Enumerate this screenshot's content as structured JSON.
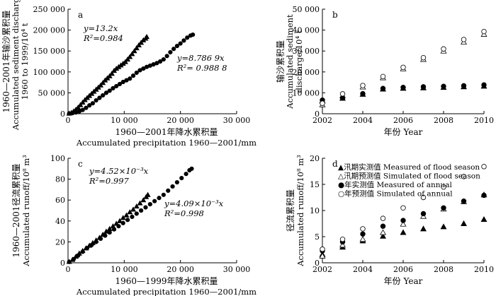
{
  "chart_data": [
    {
      "id": "a",
      "type": "scatter",
      "panel_label": "a",
      "xlabel_cn": "1960—2001年降水累积量",
      "xlabel_en": "Accumulated precipitation 1960—2001/mm",
      "ylabel_cn": "1960—2001年输沙累积量",
      "ylabel_en": "Accumulated sediment discharge",
      "ylabel_en2": "1960 to 1999/10⁴ t",
      "xlim": [
        0,
        30000
      ],
      "ylim": [
        0,
        250000
      ],
      "xticks": [
        0,
        10000,
        20000,
        30000
      ],
      "xtick_labels": [
        "0",
        "10 000",
        "20 000",
        "30 000"
      ],
      "yticks": [
        0,
        50000,
        100000,
        150000,
        200000,
        250000
      ],
      "ytick_labels": [
        "0",
        "50 000",
        "100 000",
        "150 000",
        "200 000",
        "250 000"
      ],
      "annotations": [
        {
          "eq": "y=13.2x",
          "r2": "R²=0.984"
        },
        {
          "eq": "y=8.786 9x",
          "r2": "R²= 0.988 8"
        }
      ],
      "series": [
        {
          "name": "triangle series",
          "marker": "triangle",
          "points": [
            [
              200,
              800
            ],
            [
              600,
              2500
            ],
            [
              1000,
              6000
            ],
            [
              1400,
              10000
            ],
            [
              1800,
              15000
            ],
            [
              2200,
              21000
            ],
            [
              2600,
              27000
            ],
            [
              3000,
              33000
            ],
            [
              3400,
              38000
            ],
            [
              3800,
              43000
            ],
            [
              4200,
              48000
            ],
            [
              4600,
              53000
            ],
            [
              5000,
              58000
            ],
            [
              5400,
              63000
            ],
            [
              5800,
              68000
            ],
            [
              6200,
              74000
            ],
            [
              6600,
              80000
            ],
            [
              7000,
              85000
            ],
            [
              7400,
              90000
            ],
            [
              7800,
              96000
            ],
            [
              8200,
              103000
            ],
            [
              8600,
              108000
            ],
            [
              9000,
              112000
            ],
            [
              9400,
              116000
            ],
            [
              9800,
              120000
            ],
            [
              10200,
              124000
            ],
            [
              10600,
              130000
            ],
            [
              11000,
              136000
            ],
            [
              11400,
              143000
            ],
            [
              11800,
              150000
            ],
            [
              12200,
              157000
            ],
            [
              12600,
              164000
            ],
            [
              13000,
              170000
            ],
            [
              13400,
              176000
            ],
            [
              13800,
              180000
            ],
            [
              14000,
              184000
            ]
          ]
        },
        {
          "name": "circle series",
          "marker": "circle",
          "points": [
            [
              200,
              500
            ],
            [
              800,
              1500
            ],
            [
              1400,
              3000
            ],
            [
              2000,
              5500
            ],
            [
              2600,
              9000
            ],
            [
              3200,
              14000
            ],
            [
              3800,
              20000
            ],
            [
              4400,
              25000
            ],
            [
              5000,
              32000
            ],
            [
              5600,
              38000
            ],
            [
              6200,
              44000
            ],
            [
              6800,
              50000
            ],
            [
              7400,
              55000
            ],
            [
              8000,
              61000
            ],
            [
              8600,
              66000
            ],
            [
              9200,
              71000
            ],
            [
              9800,
              76000
            ],
            [
              10400,
              80000
            ],
            [
              11000,
              84000
            ],
            [
              11600,
              91000
            ],
            [
              12200,
              98000
            ],
            [
              12800,
              104000
            ],
            [
              13400,
              108000
            ],
            [
              14000,
              112000
            ],
            [
              14600,
              115000
            ],
            [
              15200,
              118000
            ],
            [
              15800,
              121000
            ],
            [
              16400,
              125000
            ],
            [
              17000,
              130000
            ],
            [
              17600,
              138000
            ],
            [
              18200,
              147000
            ],
            [
              18800,
              155000
            ],
            [
              19400,
              162000
            ],
            [
              20000,
              168000
            ],
            [
              20600,
              175000
            ],
            [
              21200,
              182000
            ],
            [
              21800,
              187000
            ],
            [
              22200,
              189000
            ]
          ]
        }
      ]
    },
    {
      "id": "b",
      "type": "scatter",
      "panel_label": "b",
      "xlabel": "年份 Year",
      "ylabel_cn": "输沙累积量",
      "ylabel_en": "Accumulated sediment",
      "ylabel_en2": "discharge/10⁴ t",
      "xlim": [
        2002,
        2010
      ],
      "ylim": [
        0,
        50000
      ],
      "xticks": [
        2002,
        2004,
        2006,
        2008,
        2010
      ],
      "xtick_labels": [
        "2002",
        "2004",
        "2006",
        "2008",
        "2010"
      ],
      "yticks": [
        0,
        10000,
        20000,
        30000,
        40000,
        50000
      ],
      "ytick_labels": [
        "0",
        "10 000",
        "20 000",
        "30 000",
        "40 000",
        "50 000"
      ],
      "series": [
        {
          "name": "Measured of flood season",
          "marker": "triangle-filled",
          "points": [
            [
              2002,
              6200
            ],
            [
              2003,
              7400
            ],
            [
              2004,
              9300
            ],
            [
              2005,
              11800
            ],
            [
              2006,
              12200
            ],
            [
              2007,
              12400
            ],
            [
              2008,
              12600
            ],
            [
              2009,
              12900
            ],
            [
              2010,
              13200
            ]
          ]
        },
        {
          "name": "Simulated of flood season",
          "marker": "triangle-open",
          "points": [
            [
              2002,
              4300
            ],
            [
              2003,
              8600
            ],
            [
              2004,
              12800
            ],
            [
              2005,
              17200
            ],
            [
              2006,
              21500
            ],
            [
              2007,
              26000
            ],
            [
              2008,
              30000
            ],
            [
              2009,
              34300
            ],
            [
              2010,
              38000
            ]
          ]
        },
        {
          "name": "Measured of annual",
          "marker": "circle-filled",
          "points": [
            [
              2002,
              6500
            ],
            [
              2003,
              7600
            ],
            [
              2004,
              9600
            ],
            [
              2005,
              12100
            ],
            [
              2006,
              12600
            ],
            [
              2007,
              12900
            ],
            [
              2008,
              13100
            ],
            [
              2009,
              13400
            ],
            [
              2010,
              13800
            ]
          ]
        },
        {
          "name": "Simulated of annual",
          "marker": "circle-open",
          "points": [
            [
              2002,
              5000
            ],
            [
              2003,
              9500
            ],
            [
              2004,
              13500
            ],
            [
              2005,
              17800
            ],
            [
              2006,
              22200
            ],
            [
              2007,
              26800
            ],
            [
              2008,
              31000
            ],
            [
              2009,
              35500
            ],
            [
              2010,
              39300
            ]
          ]
        }
      ]
    },
    {
      "id": "c",
      "type": "scatter",
      "panel_label": "c",
      "xlabel_cn": "1960—1999年降水累积量",
      "xlabel_en": "Accumulated precipitation 1960—2001/mm",
      "ylabel_cn": "1960—2001径流累积量",
      "ylabel_en": "Accumulated runoff/10⁸ m³",
      "xlim": [
        0,
        30000
      ],
      "ylim": [
        0,
        100
      ],
      "xticks": [
        0,
        10000,
        20000,
        30000
      ],
      "xtick_labels": [
        "0",
        "10 000",
        "20 000",
        "30 000"
      ],
      "yticks": [
        0,
        20,
        40,
        60,
        80,
        100
      ],
      "ytick_labels": [
        "0",
        "20",
        "40",
        "60",
        "80",
        "100"
      ],
      "annotations": [
        {
          "eq": "y=4.52×10⁻³x",
          "r2": "R²=0.997"
        },
        {
          "eq": "y=4.09×10⁻³x",
          "r2": "R²=0.998"
        }
      ],
      "series": [
        {
          "name": "triangle series",
          "marker": "triangle",
          "points": [
            [
              200,
              1
            ],
            [
              800,
              3
            ],
            [
              1400,
              6
            ],
            [
              2000,
              9
            ],
            [
              2600,
              11.5
            ],
            [
              3200,
              14
            ],
            [
              3800,
              16.5
            ],
            [
              4400,
              19
            ],
            [
              5000,
              21.5
            ],
            [
              5600,
              24
            ],
            [
              6200,
              27
            ],
            [
              6800,
              30
            ],
            [
              7400,
              32.5
            ],
            [
              8000,
              35
            ],
            [
              8600,
              37.5
            ],
            [
              9200,
              40
            ],
            [
              9800,
              43
            ],
            [
              10400,
              45.5
            ],
            [
              11000,
              48.5
            ],
            [
              11600,
              51
            ],
            [
              12200,
              54
            ],
            [
              12800,
              57
            ],
            [
              13400,
              60
            ],
            [
              13900,
              63
            ],
            [
              14200,
              65
            ]
          ]
        },
        {
          "name": "circle series",
          "marker": "circle",
          "points": [
            [
              200,
              0.8
            ],
            [
              1000,
              3.5
            ],
            [
              1800,
              7
            ],
            [
              2600,
              10.5
            ],
            [
              3400,
              14
            ],
            [
              4200,
              17
            ],
            [
              5000,
              20
            ],
            [
              5800,
              23
            ],
            [
              6600,
              26
            ],
            [
              7400,
              29
            ],
            [
              8200,
              32
            ],
            [
              9000,
              35
            ],
            [
              9800,
              38
            ],
            [
              10600,
              41
            ],
            [
              11400,
              44
            ],
            [
              12200,
              47
            ],
            [
              13000,
              50
            ],
            [
              13800,
              53
            ],
            [
              14600,
              56
            ],
            [
              15400,
              59
            ],
            [
              16200,
              62
            ],
            [
              17000,
              65
            ],
            [
              17800,
              69
            ],
            [
              18600,
              73
            ],
            [
              19400,
              77
            ],
            [
              20200,
              81
            ],
            [
              21000,
              85
            ],
            [
              21600,
              88.5
            ],
            [
              22000,
              90
            ]
          ]
        }
      ]
    },
    {
      "id": "d",
      "type": "scatter",
      "panel_label": "d",
      "xlabel": "年份 Year",
      "ylabel_cn": "径流累积量",
      "ylabel_en": "Accumulated runoff/10⁸ m³",
      "xlim": [
        2002,
        2010
      ],
      "ylim": [
        0,
        20
      ],
      "xticks": [
        2002,
        2004,
        2006,
        2008,
        2010
      ],
      "xtick_labels": [
        "2002",
        "2004",
        "2006",
        "2008",
        "2010"
      ],
      "yticks": [
        0,
        5,
        10,
        15,
        20
      ],
      "ytick_labels": [
        "0",
        "5",
        "10",
        "15",
        "20"
      ],
      "legend": [
        "▲汛期实测值 Measured of flood season",
        "△汛期预测值 Simulated of flood season",
        "●年实测值 Measured of annual",
        "○年预测值 Simulated of annual"
      ],
      "series": [
        {
          "name": "Measured of flood season",
          "marker": "triangle-filled",
          "points": [
            [
              2002,
              1.6
            ],
            [
              2003,
              3.0
            ],
            [
              2004,
              4.2
            ],
            [
              2005,
              5.1
            ],
            [
              2006,
              5.8
            ],
            [
              2007,
              6.5
            ],
            [
              2008,
              6.9
            ],
            [
              2009,
              7.5
            ],
            [
              2010,
              8.3
            ]
          ]
        },
        {
          "name": "Simulated of flood season",
          "marker": "triangle-open",
          "points": [
            [
              2002,
              1.3
            ],
            [
              2003,
              3.4
            ],
            [
              2004,
              4.5
            ],
            [
              2005,
              5.8
            ],
            [
              2006,
              7.4
            ],
            [
              2007,
              8.9
            ],
            [
              2008,
              10.3
            ],
            [
              2009,
              11.7
            ],
            [
              2010,
              13.0
            ]
          ]
        },
        {
          "name": "Measured of annual",
          "marker": "circle-filled",
          "points": [
            [
              2002,
              2.3
            ],
            [
              2003,
              4.0
            ],
            [
              2004,
              5.5
            ],
            [
              2005,
              7.0
            ],
            [
              2006,
              8.1
            ],
            [
              2007,
              9.4
            ],
            [
              2008,
              10.5
            ],
            [
              2009,
              11.8
            ],
            [
              2010,
              12.9
            ]
          ]
        },
        {
          "name": "Simulated of annual",
          "marker": "circle-open",
          "points": [
            [
              2002,
              2.6
            ],
            [
              2003,
              4.5
            ],
            [
              2004,
              6.5
            ],
            [
              2005,
              8.5
            ],
            [
              2006,
              10.5
            ],
            [
              2007,
              12.5
            ],
            [
              2008,
              14.5
            ],
            [
              2009,
              16.5
            ],
            [
              2010,
              18.4
            ]
          ]
        }
      ]
    }
  ]
}
